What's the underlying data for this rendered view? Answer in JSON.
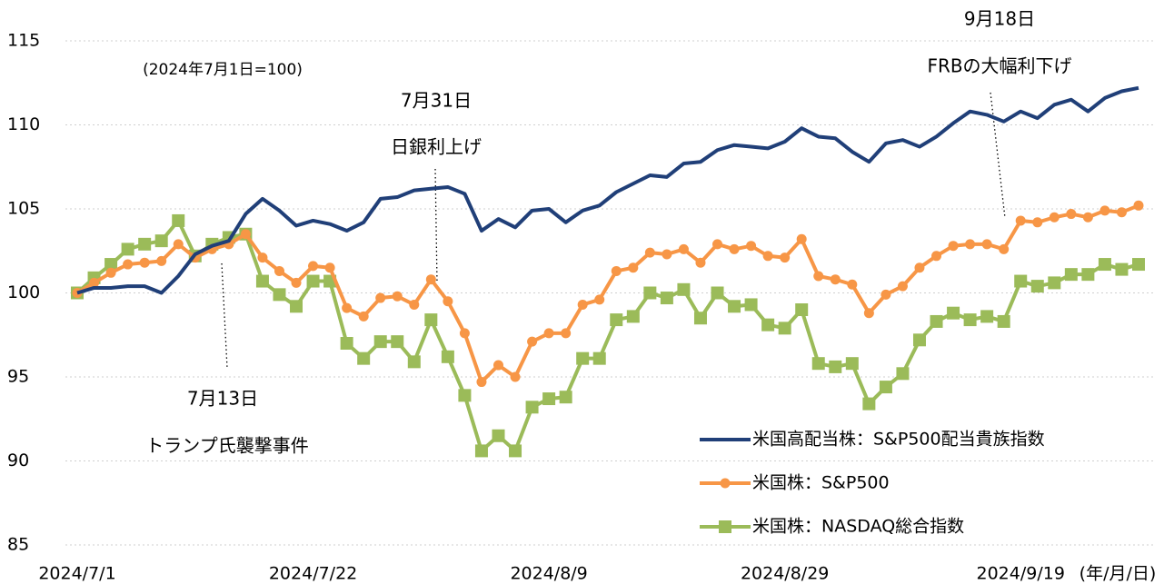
{
  "chart_data": {
    "type": "line",
    "categories": [
      "2024/7/1",
      null,
      null,
      null,
      null,
      null,
      null,
      null,
      null,
      null,
      null,
      null,
      null,
      null,
      "2024/7/22",
      null,
      null,
      null,
      null,
      null,
      null,
      null,
      null,
      null,
      null,
      null,
      null,
      null,
      "2024/8/9",
      null,
      null,
      null,
      null,
      null,
      null,
      null,
      null,
      null,
      null,
      null,
      null,
      null,
      "2024/8/29",
      null,
      null,
      null,
      null,
      null,
      null,
      null,
      null,
      null,
      null,
      null,
      null,
      null,
      "2024/9/19",
      null,
      null,
      null,
      null,
      null,
      null,
      null
    ],
    "xlabel": "(年/月/日)",
    "ylim": [
      85,
      115
    ],
    "yticks": [
      85,
      90,
      95,
      100,
      105,
      110,
      115
    ],
    "grid": true,
    "legend": "lower right",
    "annotations": [
      "(2024年7月1日=100)",
      "7月31日",
      "日銀利上げ",
      "7月13日",
      "トランプ氏襲撃事件",
      "9月18日",
      "FRBの大幅利下げ"
    ],
    "series": [
      {
        "name": "米国高配当株：S&P500配当貴族指数",
        "color": "#203f78",
        "marker": "none",
        "values": [
          100,
          100.3,
          100.3,
          100.4,
          100.4,
          100,
          101,
          102.3,
          102.8,
          103.1,
          104.7,
          105.6,
          104.9,
          104,
          104.3,
          104.1,
          103.7,
          104.2,
          105.6,
          105.7,
          106.1,
          106.2,
          106.3,
          105.9,
          103.7,
          104.4,
          103.9,
          104.9,
          105,
          104.2,
          104.9,
          105.2,
          106,
          106.5,
          107,
          106.9,
          107.7,
          107.8,
          108.5,
          108.8,
          108.7,
          108.6,
          109,
          109.8,
          109.3,
          109.2,
          108.4,
          107.8,
          108.9,
          109.1,
          108.7,
          109.3,
          110.1,
          110.8,
          110.6,
          110.2,
          110.8,
          110.4,
          111.2,
          111.5,
          110.8,
          111.6,
          112,
          112.2
        ]
      },
      {
        "name": "米国株：S&P500",
        "color": "#f79646",
        "marker": "circle",
        "values": [
          100,
          100.6,
          101.2,
          101.7,
          101.8,
          101.9,
          102.9,
          102.1,
          102.6,
          102.9,
          103.5,
          102.1,
          101.3,
          100.6,
          101.6,
          101.5,
          99.1,
          98.6,
          99.7,
          99.8,
          99.3,
          100.8,
          99.5,
          97.6,
          94.7,
          95.7,
          95,
          97.1,
          97.6,
          97.6,
          99.3,
          99.6,
          101.3,
          101.5,
          102.4,
          102.3,
          102.6,
          101.8,
          102.9,
          102.6,
          102.8,
          102.2,
          102.1,
          103.2,
          101,
          100.8,
          100.5,
          98.8,
          99.9,
          100.4,
          101.5,
          102.2,
          102.8,
          102.9,
          102.9,
          102.6,
          104.3,
          104.2,
          104.5,
          104.7,
          104.5,
          104.9,
          104.8,
          105.2
        ]
      },
      {
        "name": "米国株：NASDAQ総合指数",
        "color": "#9bbb59",
        "marker": "square",
        "values": [
          100,
          100.9,
          101.7,
          102.6,
          102.9,
          103.1,
          104.3,
          102.2,
          102.9,
          103.3,
          103.5,
          100.7,
          99.9,
          99.2,
          100.7,
          100.7,
          97,
          96.1,
          97.1,
          97.1,
          95.9,
          98.4,
          96.2,
          93.9,
          90.6,
          91.5,
          90.6,
          93.2,
          93.7,
          93.8,
          96.1,
          96.1,
          98.4,
          98.6,
          100,
          99.7,
          100.2,
          98.5,
          100,
          99.2,
          99.3,
          98.1,
          97.9,
          99,
          95.8,
          95.6,
          95.8,
          93.4,
          94.4,
          95.2,
          97.2,
          98.3,
          98.8,
          98.4,
          98.6,
          98.3,
          100.7,
          100.4,
          100.6,
          101.1,
          101.1,
          101.7,
          101.4,
          101.7
        ]
      }
    ]
  }
}
